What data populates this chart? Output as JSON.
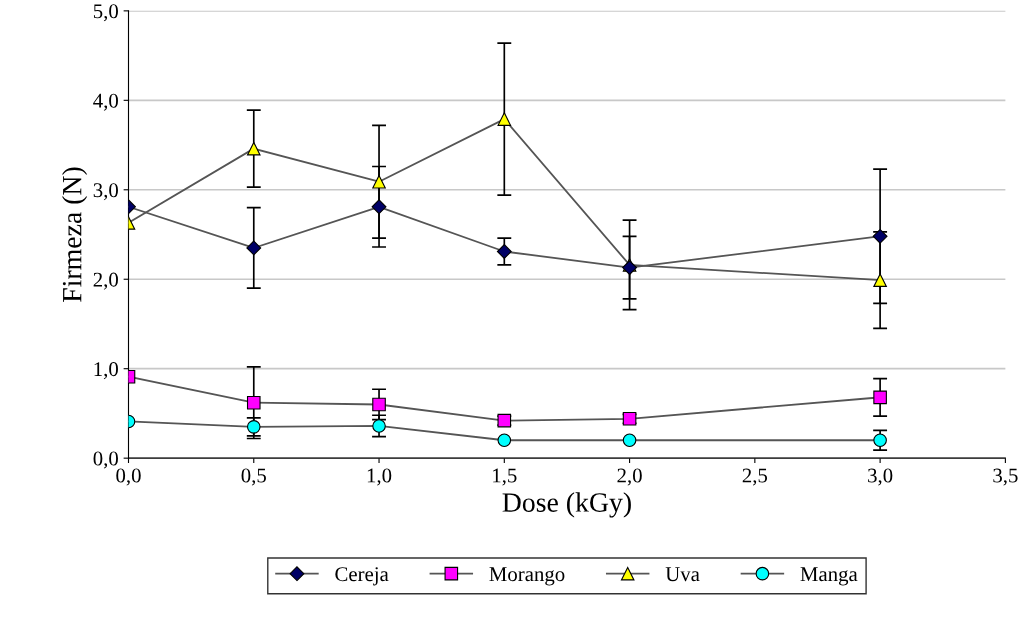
{
  "chart_data": {
    "type": "line",
    "xlabel": "Dose (kGy)",
    "ylabel": "Firmeza (N)",
    "x": [
      0.0,
      0.5,
      1.0,
      1.5,
      2.0,
      3.0
    ],
    "xlim": [
      0,
      3.5
    ],
    "ylim": [
      0,
      5.0
    ],
    "xticks": [
      {
        "value": 0,
        "label": "0,0"
      },
      {
        "value": 0.5,
        "label": "0,5"
      },
      {
        "value": 1.0,
        "label": "1,0"
      },
      {
        "value": 1.5,
        "label": "1,5"
      },
      {
        "value": 2.0,
        "label": "2,0"
      },
      {
        "value": 2.5,
        "label": "2,5"
      },
      {
        "value": 3.0,
        "label": "3,0"
      },
      {
        "value": 3.5,
        "label": "3,5"
      }
    ],
    "yticks": [
      {
        "value": 0,
        "label": "0,0"
      },
      {
        "value": 1,
        "label": "1,0"
      },
      {
        "value": 2,
        "label": "2,0"
      },
      {
        "value": 3,
        "label": "3,0"
      },
      {
        "value": 4,
        "label": "4,0"
      },
      {
        "value": 5,
        "label": "5,0"
      }
    ],
    "grid": "y",
    "legend": "bottom",
    "line_style": "solid",
    "series": [
      {
        "name": "Cereja",
        "color": "#000066",
        "marker": "diamond",
        "values": [
          2.81,
          2.35,
          2.81,
          2.31,
          2.13,
          2.48
        ],
        "errors": [
          null,
          0.45,
          0.45,
          0.15,
          0.35,
          0.75
        ]
      },
      {
        "name": "Morango",
        "color": "#ff00ff",
        "marker": "square",
        "values": [
          0.91,
          0.62,
          0.6,
          0.42,
          0.44,
          0.68
        ],
        "errors": [
          null,
          0.4,
          0.17,
          0.05,
          0.05,
          0.21
        ]
      },
      {
        "name": "Uva",
        "color": "#ffff00",
        "marker": "triangle",
        "values": [
          2.63,
          3.46,
          3.09,
          3.79,
          2.16,
          1.99
        ],
        "errors": [
          null,
          0.43,
          0.63,
          0.85,
          0.5,
          0.54
        ]
      },
      {
        "name": "Manga",
        "color": "#00ffff",
        "marker": "circle",
        "values": [
          0.41,
          0.35,
          0.36,
          0.2,
          0.2,
          0.2
        ],
        "errors": [
          null,
          0.1,
          0.12,
          null,
          null,
          0.11
        ]
      }
    ]
  }
}
